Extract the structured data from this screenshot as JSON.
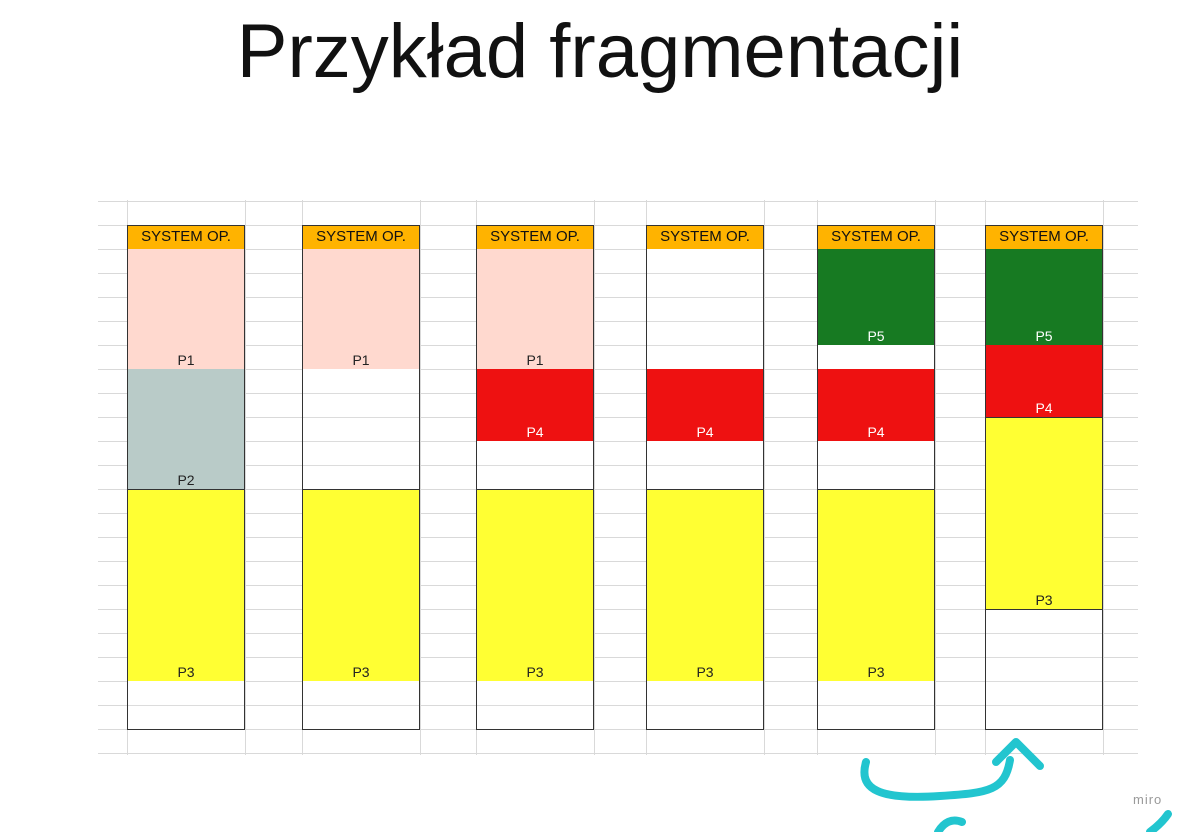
{
  "title": "Przykład fragmentacji",
  "watermark": "miro",
  "colors": {
    "os": "#ffb300",
    "P1": "#ffd9cf",
    "P2": "#b9cbc8",
    "P3": "#ffff33",
    "P4": "#ee1111",
    "P5": "#177a22",
    "free": "#ffffff",
    "annotation": "#22c5cf"
  },
  "header_label": "SYSTEM OP.",
  "columns": [
    {
      "header": "SYSTEM OP.",
      "blocks": [
        {
          "label": "P1",
          "fill": "P1",
          "start": 0,
          "size": 5
        },
        {
          "label": "P2",
          "fill": "P2",
          "start": 5,
          "size": 5
        },
        {
          "label": "P3",
          "fill": "P3",
          "start": 10,
          "size": 8
        },
        {
          "label": "",
          "fill": "free",
          "start": 18,
          "size": 2
        }
      ]
    },
    {
      "header": "SYSTEM OP.",
      "blocks": [
        {
          "label": "P1",
          "fill": "P1",
          "start": 0,
          "size": 5
        },
        {
          "label": "",
          "fill": "free",
          "start": 5,
          "size": 5
        },
        {
          "label": "P3",
          "fill": "P3",
          "start": 10,
          "size": 8
        },
        {
          "label": "",
          "fill": "free",
          "start": 18,
          "size": 2
        }
      ]
    },
    {
      "header": "SYSTEM OP.",
      "blocks": [
        {
          "label": "P1",
          "fill": "P1",
          "start": 0,
          "size": 5
        },
        {
          "label": "P4",
          "fill": "P4",
          "start": 5,
          "size": 3
        },
        {
          "label": "",
          "fill": "free",
          "start": 8,
          "size": 2
        },
        {
          "label": "P3",
          "fill": "P3",
          "start": 10,
          "size": 8
        },
        {
          "label": "",
          "fill": "free",
          "start": 18,
          "size": 2
        }
      ]
    },
    {
      "header": "SYSTEM OP.",
      "blocks": [
        {
          "label": "",
          "fill": "free",
          "start": 0,
          "size": 5
        },
        {
          "label": "P4",
          "fill": "P4",
          "start": 5,
          "size": 3
        },
        {
          "label": "",
          "fill": "free",
          "start": 8,
          "size": 2
        },
        {
          "label": "P3",
          "fill": "P3",
          "start": 10,
          "size": 8
        },
        {
          "label": "",
          "fill": "free",
          "start": 18,
          "size": 2
        }
      ]
    },
    {
      "header": "SYSTEM OP.",
      "blocks": [
        {
          "label": "P5",
          "fill": "P5",
          "start": 0,
          "size": 4
        },
        {
          "label": "",
          "fill": "free",
          "start": 4,
          "size": 1
        },
        {
          "label": "P4",
          "fill": "P4",
          "start": 5,
          "size": 3
        },
        {
          "label": "",
          "fill": "free",
          "start": 8,
          "size": 2
        },
        {
          "label": "P3",
          "fill": "P3",
          "start": 10,
          "size": 8
        },
        {
          "label": "",
          "fill": "free",
          "start": 18,
          "size": 2
        }
      ]
    },
    {
      "header": "SYSTEM OP.",
      "blocks": [
        {
          "label": "P5",
          "fill": "P5",
          "start": 0,
          "size": 4
        },
        {
          "label": "P4",
          "fill": "P4",
          "start": 4,
          "size": 3
        },
        {
          "label": "P3",
          "fill": "P3",
          "start": 7,
          "size": 8
        },
        {
          "label": "",
          "fill": "free",
          "start": 15,
          "size": 5
        }
      ]
    }
  ]
}
